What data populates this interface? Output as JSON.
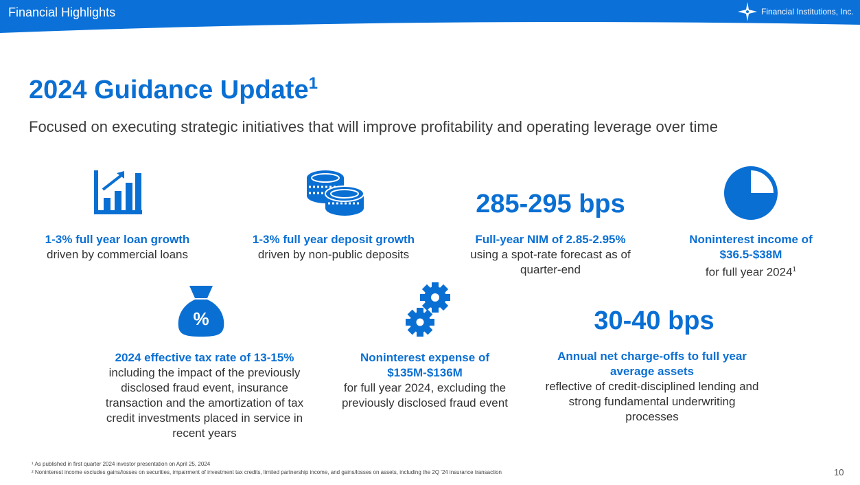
{
  "header": {
    "section": "Financial Highlights",
    "company": "Financial Institutions, Inc."
  },
  "title": {
    "text": "2024 Guidance Update",
    "sup": "1"
  },
  "subtitle": "Focused on executing strategic initiatives that will improve profitability and operating leverage over time",
  "items": {
    "loan": {
      "highlight": "1-3% full year loan growth",
      "detail": "driven by commercial loans"
    },
    "deposit": {
      "highlight": "1-3% full year deposit growth",
      "detail": "driven by non-public deposits"
    },
    "nim": {
      "stat": "285-295 bps",
      "highlight": "Full-year NIM of 2.85-2.95%",
      "detail": "using a spot-rate forecast as of quarter-end"
    },
    "income": {
      "highlight": "Noninterest income of $36.5-$38M",
      "detail": "for full year 2024",
      "sup": "1"
    },
    "tax": {
      "highlight": "2024 effective tax rate of 13-15%",
      "detail": "including the impact of the previously disclosed fraud event, insurance transaction and the amortization of tax credit investments placed in service in recent years",
      "icon_symbol": "%"
    },
    "expense": {
      "highlight": "Noninterest expense of $135M-$136M",
      "detail": "for full year 2024, excluding the previously disclosed fraud event"
    },
    "chargeoffs": {
      "stat": "30-40 bps",
      "highlight": "Annual net charge-offs to full year average assets",
      "detail": "reflective of credit-disciplined lending and strong fundamental underwriting processes"
    }
  },
  "footnotes": [
    "¹ As published in first quarter 2024 investor presentation on April 25, 2024",
    "² Noninterest income excludes gains/losses on securities, impairment of investment tax credits, limited partnership income, and gains/losses on assets, including the 2Q '24 insurance transaction"
  ],
  "page_number": "10",
  "colors": {
    "brand_blue": "#0a6fd3",
    "header_blue": "#0b71d9"
  }
}
